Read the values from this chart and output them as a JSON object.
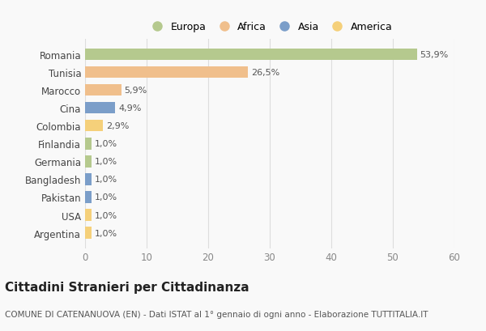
{
  "countries": [
    "Romania",
    "Tunisia",
    "Marocco",
    "Cina",
    "Colombia",
    "Finlandia",
    "Germania",
    "Bangladesh",
    "Pakistan",
    "USA",
    "Argentina"
  ],
  "values": [
    53.9,
    26.5,
    5.9,
    4.9,
    2.9,
    1.0,
    1.0,
    1.0,
    1.0,
    1.0,
    1.0
  ],
  "labels": [
    "53,9%",
    "26,5%",
    "5,9%",
    "4,9%",
    "2,9%",
    "1,0%",
    "1,0%",
    "1,0%",
    "1,0%",
    "1,0%",
    "1,0%"
  ],
  "colors": [
    "#b5c98e",
    "#f0bf8c",
    "#f0bf8c",
    "#7b9ec9",
    "#f5d07a",
    "#b5c98e",
    "#b5c98e",
    "#7b9ec9",
    "#7b9ec9",
    "#f5d07a",
    "#f5d07a"
  ],
  "legend_labels": [
    "Europa",
    "Africa",
    "Asia",
    "America"
  ],
  "legend_colors": [
    "#b5c98e",
    "#f0bf8c",
    "#7b9ec9",
    "#f5d07a"
  ],
  "xlim": [
    0,
    60
  ],
  "xticks": [
    0,
    10,
    20,
    30,
    40,
    50,
    60
  ],
  "title": "Cittadini Stranieri per Cittadinanza",
  "subtitle": "COMUNE DI CATENANUOVA (EN) - Dati ISTAT al 1° gennaio di ogni anno - Elaborazione TUTTITALIA.IT",
  "bg_color": "#f9f9f9",
  "grid_color": "#dddddd",
  "bar_height": 0.65,
  "title_fontsize": 11,
  "subtitle_fontsize": 7.5,
  "label_fontsize": 8,
  "tick_fontsize": 8.5,
  "legend_fontsize": 9
}
